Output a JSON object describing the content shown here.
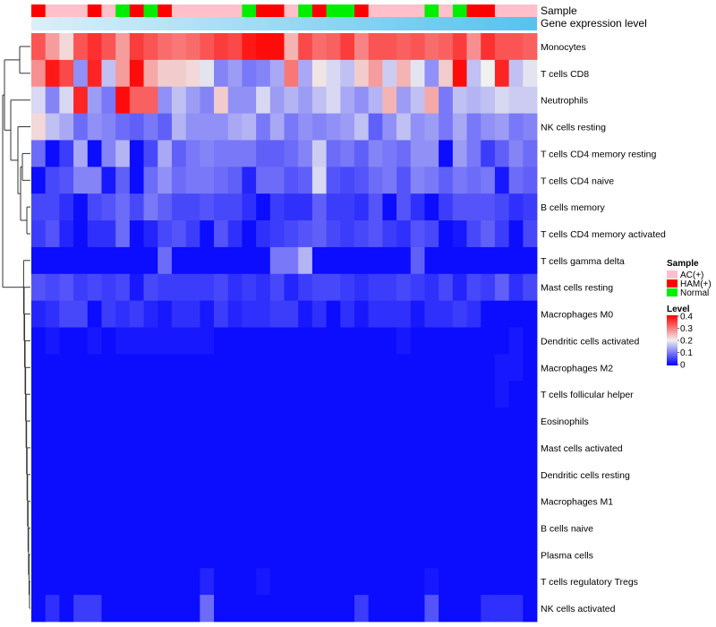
{
  "chart_data": {
    "type": "heatmap",
    "annotation_labels": {
      "sample": "Sample",
      "gene_expression": "Gene expression level"
    },
    "rows": [
      "Monocytes",
      "T cells CD8",
      "Neutrophils",
      "NK cells resting",
      "T cells CD4 memory resting",
      "T cells CD4 naive",
      "B cells memory",
      "T cells CD4 memory activated",
      "T cells gamma delta",
      "Mast cells resting",
      "Macrophages M0",
      "Dendritic cells activated",
      "Macrophages M2",
      "T cells follicular helper",
      "Eosinophils",
      "Mast cells activated",
      "Dendritic cells resting",
      "Macrophages M1",
      "B cells naive",
      "Plasma cells",
      "T cells regulatory  Tregs",
      "NK cells activated"
    ],
    "sample_groups": [
      "HAM(+)",
      "AC(+)",
      "AC(+)",
      "AC(+)",
      "HAM(+)",
      "AC(+)",
      "Normal",
      "HAM(+)",
      "Normal",
      "HAM(+)",
      "AC(+)",
      "AC(+)",
      "AC(+)",
      "AC(+)",
      "AC(+)",
      "Normal",
      "HAM(+)",
      "HAM(+)",
      "AC(+)",
      "Normal",
      "HAM(+)",
      "Normal",
      "Normal",
      "HAM(+)",
      "AC(+)",
      "AC(+)",
      "AC(+)",
      "AC(+)",
      "Normal",
      "AC(+)",
      "Normal",
      "HAM(+)",
      "HAM(+)",
      "AC(+)",
      "AC(+)",
      "AC(+)"
    ],
    "expression_gradient": 0.3,
    "values": [
      [
        0.33,
        0.27,
        0.22,
        0.33,
        0.36,
        0.33,
        0.27,
        0.35,
        0.33,
        0.31,
        0.3,
        0.31,
        0.33,
        0.35,
        0.34,
        0.38,
        0.39,
        0.39,
        0.25,
        0.34,
        0.31,
        0.32,
        0.35,
        0.29,
        0.33,
        0.33,
        0.32,
        0.33,
        0.31,
        0.32,
        0.35,
        0.28,
        0.36,
        0.33,
        0.33,
        0.32
      ],
      [
        0.28,
        0.38,
        0.34,
        0.12,
        0.37,
        0.16,
        0.27,
        0.39,
        0.26,
        0.23,
        0.23,
        0.22,
        0.19,
        0.11,
        0.13,
        0.1,
        0.11,
        0.14,
        0.3,
        0.14,
        0.21,
        0.18,
        0.16,
        0.23,
        0.27,
        0.17,
        0.25,
        0.19,
        0.12,
        0.23,
        0.39,
        0.16,
        0.2,
        0.37,
        0.16,
        0.19
      ],
      [
        0.18,
        0.11,
        0.18,
        0.37,
        0.13,
        0.1,
        0.39,
        0.32,
        0.32,
        0.12,
        0.16,
        0.13,
        0.11,
        0.23,
        0.12,
        0.12,
        0.18,
        0.13,
        0.15,
        0.13,
        0.16,
        0.18,
        0.14,
        0.12,
        0.15,
        0.25,
        0.13,
        0.16,
        0.26,
        0.1,
        0.16,
        0.15,
        0.16,
        0.18,
        0.17,
        0.17
      ],
      [
        0.22,
        0.16,
        0.14,
        0.09,
        0.12,
        0.11,
        0.09,
        0.08,
        0.1,
        0.08,
        0.15,
        0.12,
        0.12,
        0.12,
        0.14,
        0.15,
        0.1,
        0.14,
        0.1,
        0.12,
        0.11,
        0.12,
        0.13,
        0.16,
        0.08,
        0.12,
        0.16,
        0.12,
        0.13,
        0.1,
        0.14,
        0.1,
        0.12,
        0.13,
        0.1,
        0.11
      ],
      [
        0.09,
        0.01,
        0.05,
        0.14,
        0.01,
        0.11,
        0.15,
        0.01,
        0.06,
        0.14,
        0.08,
        0.1,
        0.11,
        0.1,
        0.1,
        0.1,
        0.08,
        0.08,
        0.09,
        0.11,
        0.17,
        0.09,
        0.1,
        0.08,
        0.11,
        0.1,
        0.09,
        0.12,
        0.12,
        0.01,
        0.13,
        0.1,
        0.05,
        0.08,
        0.11,
        0.09
      ],
      [
        0.01,
        0.06,
        0.07,
        0.11,
        0.11,
        0.02,
        0.08,
        0.01,
        0.09,
        0.12,
        0.09,
        0.1,
        0.1,
        0.09,
        0.08,
        0.03,
        0.09,
        0.09,
        0.07,
        0.08,
        0.18,
        0.07,
        0.06,
        0.07,
        0.09,
        0.1,
        0.07,
        0.11,
        0.1,
        0.08,
        0.1,
        0.09,
        0.1,
        0.02,
        0.09,
        0.08
      ],
      [
        0.06,
        0.06,
        0.04,
        0.01,
        0.06,
        0.07,
        0.09,
        0.06,
        0.1,
        0.08,
        0.06,
        0.06,
        0.07,
        0.06,
        0.06,
        0.04,
        0.01,
        0.05,
        0.04,
        0.04,
        0.08,
        0.05,
        0.05,
        0.04,
        0.07,
        0.01,
        0.07,
        0.04,
        0.01,
        0.05,
        0.07,
        0.07,
        0.07,
        0.06,
        0.04,
        0.05
      ],
      [
        0.05,
        0.07,
        0.03,
        0.01,
        0.04,
        0.04,
        0.09,
        0.01,
        0.03,
        0.06,
        0.07,
        0.05,
        0.01,
        0.07,
        0.04,
        0.01,
        0.04,
        0.05,
        0.06,
        0.07,
        0.08,
        0.06,
        0.05,
        0.06,
        0.07,
        0.05,
        0.04,
        0.07,
        0.06,
        0.01,
        0.02,
        0.06,
        0.08,
        0.05,
        0.01,
        0.06
      ],
      [
        0.01,
        0.01,
        0.01,
        0.01,
        0.01,
        0.01,
        0.01,
        0.01,
        0.01,
        0.09,
        0.01,
        0.01,
        0.01,
        0.01,
        0.01,
        0.01,
        0.01,
        0.1,
        0.1,
        0.15,
        0.01,
        0.01,
        0.01,
        0.01,
        0.01,
        0.01,
        0.01,
        0.08,
        0.01,
        0.01,
        0.01,
        0.01,
        0.01,
        0.01,
        0.01,
        0.01
      ],
      [
        0.07,
        0.06,
        0.07,
        0.05,
        0.06,
        0.05,
        0.06,
        0.02,
        0.06,
        0.05,
        0.05,
        0.05,
        0.05,
        0.06,
        0.04,
        0.05,
        0.04,
        0.06,
        0.03,
        0.05,
        0.06,
        0.06,
        0.05,
        0.04,
        0.05,
        0.05,
        0.06,
        0.05,
        0.04,
        0.06,
        0.03,
        0.06,
        0.05,
        0.08,
        0.04,
        0.06
      ],
      [
        0.03,
        0.04,
        0.06,
        0.06,
        0.01,
        0.05,
        0.04,
        0.05,
        0.03,
        0.02,
        0.04,
        0.04,
        0.02,
        0.05,
        0.03,
        0.04,
        0.04,
        0.05,
        0.05,
        0.02,
        0.04,
        0.01,
        0.04,
        0.02,
        0.04,
        0.04,
        0.04,
        0.02,
        0.04,
        0.04,
        0.05,
        0.04,
        0.01,
        0.01,
        0.01,
        0.01
      ],
      [
        0.01,
        0.02,
        0.01,
        0.01,
        0.02,
        0.01,
        0.02,
        0.02,
        0.02,
        0.02,
        0.02,
        0.02,
        0.02,
        0.01,
        0.01,
        0.01,
        0.01,
        0.01,
        0.01,
        0.01,
        0.01,
        0.01,
        0.01,
        0.01,
        0.01,
        0.01,
        0.02,
        0.01,
        0.01,
        0.01,
        0.01,
        0.01,
        0.01,
        0.01,
        0.02,
        0.01
      ],
      [
        0.01,
        0.01,
        0.01,
        0.01,
        0.01,
        0.01,
        0.01,
        0.01,
        0.01,
        0.01,
        0.01,
        0.01,
        0.01,
        0.01,
        0.01,
        0.01,
        0.01,
        0.01,
        0.01,
        0.01,
        0.01,
        0.01,
        0.01,
        0.01,
        0.01,
        0.01,
        0.01,
        0.01,
        0.01,
        0.01,
        0.01,
        0.01,
        0.01,
        0.02,
        0.02,
        0.01
      ],
      [
        0.01,
        0.01,
        0.01,
        0.01,
        0.01,
        0.01,
        0.01,
        0.01,
        0.01,
        0.01,
        0.01,
        0.01,
        0.01,
        0.01,
        0.01,
        0.01,
        0.01,
        0.01,
        0.01,
        0.01,
        0.01,
        0.01,
        0.01,
        0.01,
        0.01,
        0.01,
        0.01,
        0.01,
        0.01,
        0.01,
        0.01,
        0.01,
        0.01,
        0.02,
        0.01,
        0.01
      ],
      [
        0.01,
        0.01,
        0.01,
        0.01,
        0.01,
        0.01,
        0.01,
        0.01,
        0.01,
        0.01,
        0.01,
        0.01,
        0.01,
        0.01,
        0.01,
        0.01,
        0.01,
        0.01,
        0.01,
        0.01,
        0.01,
        0.01,
        0.01,
        0.01,
        0.01,
        0.01,
        0.01,
        0.01,
        0.01,
        0.01,
        0.01,
        0.01,
        0.01,
        0.01,
        0.01,
        0.01
      ],
      [
        0.01,
        0.01,
        0.01,
        0.01,
        0.01,
        0.01,
        0.01,
        0.01,
        0.01,
        0.01,
        0.01,
        0.01,
        0.01,
        0.01,
        0.01,
        0.01,
        0.01,
        0.01,
        0.01,
        0.01,
        0.01,
        0.01,
        0.01,
        0.01,
        0.01,
        0.01,
        0.01,
        0.01,
        0.01,
        0.01,
        0.01,
        0.01,
        0.01,
        0.01,
        0.01,
        0.01
      ],
      [
        0.01,
        0.01,
        0.01,
        0.01,
        0.01,
        0.01,
        0.01,
        0.01,
        0.01,
        0.01,
        0.01,
        0.01,
        0.01,
        0.01,
        0.01,
        0.01,
        0.01,
        0.01,
        0.01,
        0.01,
        0.01,
        0.01,
        0.01,
        0.01,
        0.01,
        0.01,
        0.01,
        0.01,
        0.01,
        0.01,
        0.01,
        0.01,
        0.01,
        0.01,
        0.01,
        0.01
      ],
      [
        0.01,
        0.01,
        0.01,
        0.01,
        0.01,
        0.01,
        0.01,
        0.01,
        0.01,
        0.01,
        0.01,
        0.01,
        0.01,
        0.01,
        0.01,
        0.01,
        0.01,
        0.01,
        0.01,
        0.01,
        0.01,
        0.01,
        0.01,
        0.01,
        0.01,
        0.01,
        0.01,
        0.01,
        0.01,
        0.01,
        0.01,
        0.01,
        0.01,
        0.01,
        0.01,
        0.01
      ],
      [
        0.01,
        0.01,
        0.01,
        0.01,
        0.01,
        0.01,
        0.01,
        0.01,
        0.01,
        0.01,
        0.01,
        0.01,
        0.01,
        0.01,
        0.01,
        0.01,
        0.01,
        0.01,
        0.01,
        0.01,
        0.01,
        0.01,
        0.01,
        0.01,
        0.01,
        0.01,
        0.01,
        0.01,
        0.01,
        0.01,
        0.01,
        0.01,
        0.01,
        0.01,
        0.01,
        0.01
      ],
      [
        0.01,
        0.01,
        0.01,
        0.01,
        0.01,
        0.01,
        0.01,
        0.01,
        0.01,
        0.01,
        0.01,
        0.01,
        0.01,
        0.01,
        0.01,
        0.01,
        0.01,
        0.01,
        0.01,
        0.01,
        0.01,
        0.01,
        0.01,
        0.01,
        0.01,
        0.01,
        0.01,
        0.01,
        0.01,
        0.01,
        0.01,
        0.01,
        0.01,
        0.01,
        0.01,
        0.01
      ],
      [
        0.01,
        0.01,
        0.01,
        0.01,
        0.01,
        0.01,
        0.01,
        0.01,
        0.01,
        0.01,
        0.01,
        0.01,
        0.03,
        0.01,
        0.01,
        0.01,
        0.02,
        0.01,
        0.01,
        0.01,
        0.01,
        0.01,
        0.01,
        0.01,
        0.01,
        0.01,
        0.01,
        0.01,
        0.02,
        0.01,
        0.01,
        0.01,
        0.01,
        0.01,
        0.01,
        0.01
      ],
      [
        0.01,
        0.04,
        0.01,
        0.05,
        0.05,
        0.01,
        0.01,
        0.01,
        0.01,
        0.01,
        0.01,
        0.01,
        0.09,
        0.01,
        0.01,
        0.01,
        0.01,
        0.01,
        0.01,
        0.01,
        0.01,
        0.01,
        0.01,
        0.05,
        0.01,
        0.01,
        0.01,
        0.01,
        0.07,
        0.01,
        0.01,
        0.01,
        0.04,
        0.04,
        0.04,
        0.01
      ]
    ],
    "legend": {
      "sample_title": "Sample",
      "sample_entries": [
        {
          "label": "AC(+)",
          "color": "#FFC0CB"
        },
        {
          "label": "HAM(+)",
          "color": "#FF0000"
        },
        {
          "label": "Normal",
          "color": "#00EE00"
        }
      ],
      "level_title": "Level",
      "level_ticks": [
        "0.4",
        "0.3",
        "0.2",
        "0.1",
        "0"
      ],
      "level_range": [
        0,
        0.4
      ]
    },
    "colors": {
      "low": "#0000FF",
      "mid": "#F0F0F0",
      "high": "#FF0000",
      "expression_start": "#DCEFF9",
      "expression_end": "#55C3EE"
    }
  }
}
